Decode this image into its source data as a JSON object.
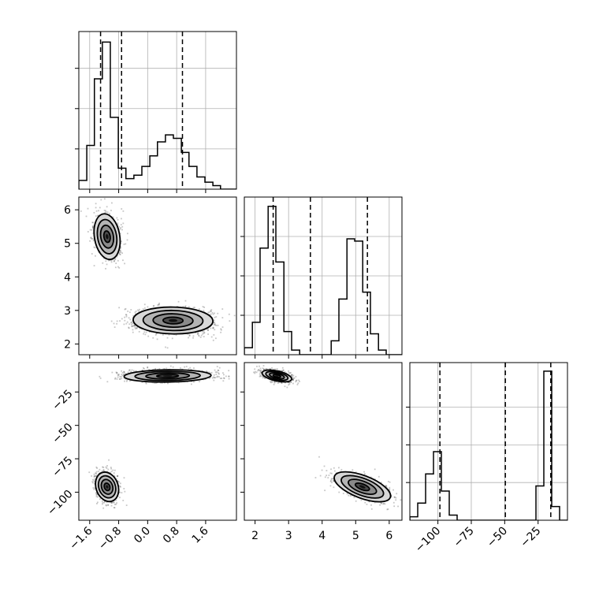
{
  "chart_data": {
    "type": "corner",
    "parameters": [
      {
        "range": [
          -1.9,
          2.45
        ],
        "ticks": [
          -1.6,
          -0.8,
          0.0,
          0.8,
          1.6
        ],
        "tick_labels": [
          "−1.6",
          "−0.8",
          "0.0",
          "0.8",
          "1.6"
        ]
      },
      {
        "range": [
          1.68,
          6.38
        ],
        "ticks": [
          2,
          3,
          4,
          5,
          6
        ],
        "tick_labels": [
          "2",
          "3",
          "4",
          "5",
          "6"
        ]
      },
      {
        "range": [
          -121,
          -3
        ],
        "ticks": [
          -100,
          -75,
          -50,
          -25
        ],
        "tick_labels": [
          "−100",
          "−75",
          "−50",
          "−25"
        ]
      }
    ],
    "histograms": [
      {
        "edges": [
          -1.9,
          -1.68,
          -1.47,
          -1.25,
          -1.03,
          -0.81,
          -0.6,
          -0.38,
          -0.16,
          0.06,
          0.27,
          0.49,
          0.71,
          0.93,
          1.14,
          1.36,
          1.58,
          1.8,
          2.01,
          2.23,
          2.45
        ],
        "counts": [
          5,
          25,
          63,
          84,
          41,
          12,
          6,
          8,
          13,
          19,
          27,
          31,
          29,
          21,
          13,
          7,
          4,
          2,
          0,
          0
        ],
        "ylim": [
          0,
          90
        ],
        "yticks": [
          23,
          46,
          69
        ],
        "quantiles": [
          -1.3,
          -0.72,
          0.96
        ]
      },
      {
        "edges": [
          1.68,
          1.92,
          2.15,
          2.39,
          2.62,
          2.86,
          3.09,
          3.33,
          3.56,
          3.8,
          4.03,
          4.27,
          4.5,
          4.74,
          4.97,
          5.21,
          5.44,
          5.68,
          5.91,
          6.15,
          6.38
        ],
        "counts": [
          3,
          14,
          46,
          64,
          40,
          10,
          2,
          0,
          0,
          0,
          0,
          6,
          24,
          50,
          49,
          27,
          9,
          2,
          0,
          0
        ],
        "ylim": [
          0,
          68
        ],
        "yticks": [
          17,
          34,
          51
        ],
        "quantiles": [
          2.54,
          3.65,
          5.35
        ]
      },
      {
        "edges": [
          -121,
          -115.1,
          -109.2,
          -103.3,
          -97.4,
          -91.5,
          -85.6,
          -79.7,
          -73.8,
          -67.9,
          -62,
          -56.1,
          -50.2,
          -44.3,
          -38.4,
          -32.5,
          -26.6,
          -20.7,
          -14.8,
          -8.9,
          -3
        ],
        "counts": [
          2,
          10,
          27,
          40,
          17,
          3,
          0,
          0,
          0,
          0,
          0,
          0,
          0,
          0,
          0,
          0,
          20,
          87,
          8,
          0
        ],
        "ylim": [
          0,
          92
        ],
        "yticks": [
          22,
          44,
          66
        ],
        "quantiles": [
          -98.5,
          -49.5,
          -15.5
        ]
      }
    ],
    "joint": [
      {
        "x_param": 0,
        "y_param": 1,
        "clusters": [
          {
            "cx": -1.12,
            "cy": 5.2,
            "sx": 0.18,
            "sy": 0.34,
            "rho": -0.2,
            "n": 850
          },
          {
            "cx": 0.7,
            "cy": 2.7,
            "sx": 0.55,
            "sy": 0.2,
            "rho": -0.05,
            "n": 1150
          }
        ]
      },
      {
        "x_param": 0,
        "y_param": 2,
        "clusters": [
          {
            "cx": -1.12,
            "cy": -96,
            "sx": 0.16,
            "sy": 5.5,
            "rho": -0.2,
            "n": 850
          },
          {
            "cx": 0.55,
            "cy": -13,
            "sx": 0.6,
            "sy": 2.3,
            "rho": 0.1,
            "n": 1150
          }
        ]
      },
      {
        "x_param": 1,
        "y_param": 2,
        "clusters": [
          {
            "cx": 2.65,
            "cy": -13,
            "sx": 0.22,
            "sy": 2.2,
            "rho": -0.5,
            "n": 1150
          },
          {
            "cx": 5.2,
            "cy": -96,
            "sx": 0.42,
            "sy": 5.6,
            "rho": -0.6,
            "n": 850
          }
        ]
      }
    ],
    "grid": true,
    "xlabel": "",
    "ylabel": ""
  }
}
